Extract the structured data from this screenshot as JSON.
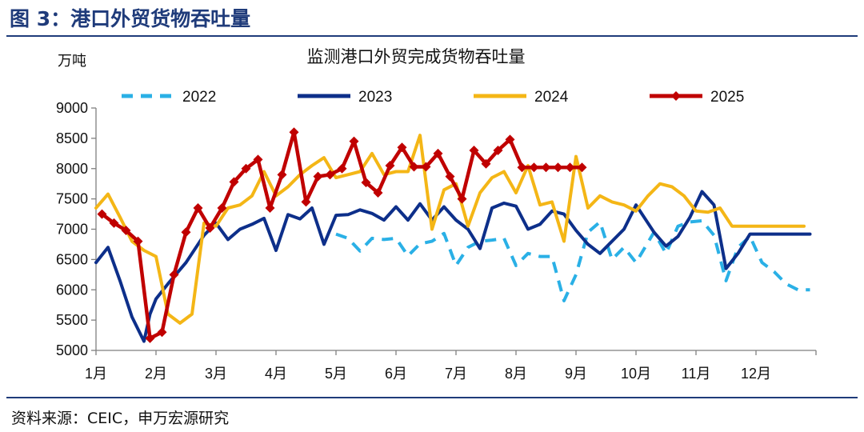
{
  "figure_title": "图 3：港口外贸货物吞吐量",
  "source": "资料来源：CEIC，申万宏源研究",
  "chart_data": {
    "type": "line",
    "title": "监测港口外贸完成货物吞吐量",
    "ylabel": "万吨",
    "xlabel": "",
    "ylim": [
      5000,
      9000
    ],
    "yticks": [
      5000,
      5500,
      6000,
      6500,
      7000,
      7500,
      8000,
      8500,
      9000
    ],
    "xlim": [
      1,
      13
    ],
    "xticks": [
      "1月",
      "2月",
      "3月",
      "4月",
      "5月",
      "6月",
      "7月",
      "8月",
      "9月",
      "10月",
      "11月",
      "12月"
    ],
    "legend_position": "top",
    "grid": false,
    "series": [
      {
        "name": "2022",
        "color": "#2ab0e6",
        "style": "dashed",
        "x": [
          5.0,
          5.2,
          5.4,
          5.6,
          5.8,
          6.0,
          6.2,
          6.4,
          6.6,
          6.8,
          7.0,
          7.2,
          7.4,
          7.6,
          7.8,
          8.0,
          8.2,
          8.4,
          8.6,
          8.8,
          9.0,
          9.2,
          9.4,
          9.6,
          9.8,
          10.0,
          10.3,
          10.5,
          10.7,
          10.9,
          11.1,
          11.3,
          11.5,
          11.7,
          11.9,
          12.1,
          12.3,
          12.5,
          12.7,
          12.9
        ],
        "y": [
          6920,
          6850,
          6640,
          6850,
          6830,
          6850,
          6560,
          6760,
          6800,
          6930,
          6400,
          6700,
          6800,
          6820,
          6850,
          6400,
          6600,
          6550,
          6550,
          5820,
          6250,
          6950,
          7120,
          6500,
          6700,
          6450,
          6950,
          6600,
          7050,
          7120,
          7140,
          6900,
          6150,
          6700,
          6880,
          6450,
          6300,
          6100,
          6000,
          6000
        ]
      },
      {
        "name": "2023",
        "color": "#0d2f8a",
        "style": "solid",
        "x": [
          1.0,
          1.2,
          1.4,
          1.6,
          1.8,
          1.9,
          2.0,
          2.2,
          2.5,
          2.8,
          3.0,
          3.2,
          3.4,
          3.6,
          3.8,
          4.0,
          4.2,
          4.4,
          4.6,
          4.8,
          5.0,
          5.2,
          5.4,
          5.6,
          5.8,
          6.0,
          6.2,
          6.4,
          6.6,
          6.8,
          7.0,
          7.2,
          7.4,
          7.6,
          7.8,
          8.0,
          8.2,
          8.4,
          8.6,
          8.8,
          9.0,
          9.2,
          9.4,
          9.6,
          9.8,
          10.0,
          10.3,
          10.5,
          10.7,
          10.9,
          11.1,
          11.3,
          11.5,
          11.7,
          11.9,
          12.1,
          12.3,
          12.5,
          12.7,
          12.9
        ],
        "y": [
          6450,
          6700,
          6150,
          5550,
          5150,
          5600,
          5850,
          6100,
          6450,
          6900,
          7100,
          6830,
          7000,
          7080,
          7180,
          6650,
          7240,
          7170,
          7350,
          6750,
          7230,
          7240,
          7320,
          7260,
          7150,
          7370,
          7150,
          7420,
          7150,
          7370,
          7150,
          7000,
          6680,
          7350,
          7430,
          7380,
          7000,
          7080,
          7300,
          7250,
          6980,
          6750,
          6600,
          6800,
          7000,
          7400,
          6950,
          6720,
          6880,
          7200,
          7620,
          7400,
          6350,
          6600,
          6920,
          6920,
          6920,
          6920,
          6920,
          6920
        ]
      },
      {
        "name": "2024",
        "color": "#f4b616",
        "style": "solid",
        "x": [
          1.0,
          1.2,
          1.4,
          1.6,
          1.8,
          2.0,
          2.2,
          2.4,
          2.6,
          2.8,
          3.0,
          3.2,
          3.4,
          3.6,
          3.8,
          4.0,
          4.2,
          4.4,
          4.6,
          4.8,
          5.0,
          5.2,
          5.4,
          5.6,
          5.8,
          6.0,
          6.2,
          6.4,
          6.6,
          6.8,
          7.0,
          7.2,
          7.4,
          7.6,
          7.8,
          8.0,
          8.2,
          8.4,
          8.6,
          8.8,
          9.0,
          9.2,
          9.4,
          9.6,
          9.8,
          10.0,
          10.2,
          10.4,
          10.6,
          10.8,
          11.0,
          11.2,
          11.4,
          11.6,
          11.8,
          12.0,
          12.2,
          12.4,
          12.6,
          12.8
        ],
        "y": [
          7350,
          7580,
          7200,
          6800,
          6650,
          6550,
          5600,
          5450,
          5600,
          7100,
          7050,
          7350,
          7400,
          7550,
          7950,
          7550,
          7700,
          7900,
          8050,
          8180,
          7850,
          7900,
          7950,
          8250,
          7900,
          7950,
          7950,
          8550,
          7000,
          7650,
          7750,
          7050,
          7600,
          7850,
          7950,
          7600,
          8050,
          7400,
          7450,
          6800,
          8200,
          7350,
          7550,
          7450,
          7400,
          7300,
          7550,
          7750,
          7700,
          7550,
          7300,
          7280,
          7350,
          7050,
          7050,
          7050,
          7050,
          7050,
          7050,
          7050
        ]
      },
      {
        "name": "2025",
        "color": "#c00000",
        "style": "solid-marker",
        "x": [
          1.1,
          1.3,
          1.5,
          1.7,
          1.9,
          2.1,
          2.3,
          2.5,
          2.7,
          2.9,
          3.1,
          3.3,
          3.5,
          3.7,
          3.9,
          4.1,
          4.3,
          4.5,
          4.7,
          4.9,
          5.1,
          5.3,
          5.5,
          5.7,
          5.9,
          6.1,
          6.3,
          6.5,
          6.7,
          6.9,
          7.1,
          7.3,
          7.5,
          7.7,
          7.9,
          8.1,
          8.3,
          8.5,
          8.7,
          8.9,
          9.1
        ],
        "y": [
          7250,
          7100,
          6980,
          6800,
          5200,
          5300,
          6250,
          6950,
          7350,
          7020,
          7350,
          7780,
          8000,
          8150,
          7350,
          7900,
          8600,
          7450,
          7870,
          7900,
          8000,
          8450,
          7770,
          7600,
          8050,
          8350,
          8030,
          8030,
          8250,
          7870,
          7500,
          8300,
          8080,
          8300,
          8480,
          8020,
          8020,
          8020,
          8020,
          8020,
          8020
        ]
      }
    ]
  }
}
